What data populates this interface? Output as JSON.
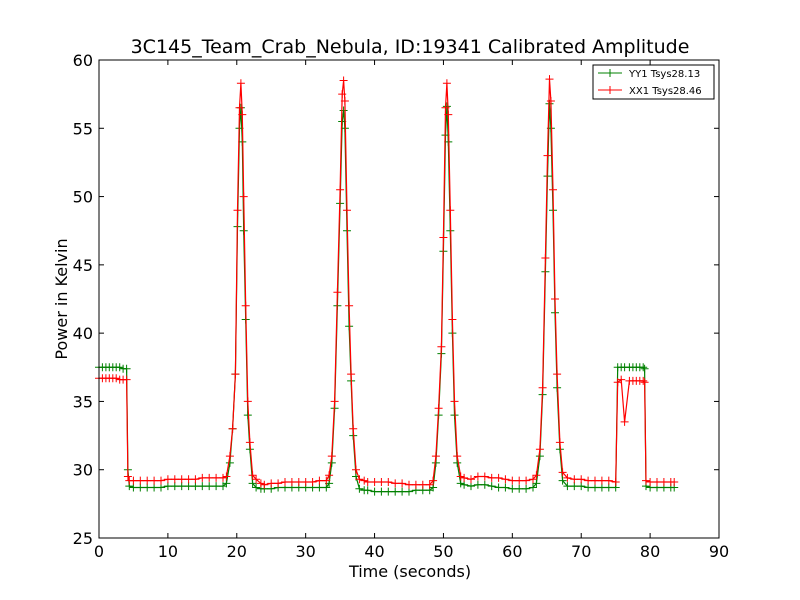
{
  "chart_data": {
    "type": "line",
    "title": "3C145_Team_Crab_Nebula, ID:19341 Calibrated Amplitude",
    "xlabel": "Time (seconds)",
    "ylabel": "Power in Kelvin",
    "xlim": [
      0,
      90
    ],
    "ylim": [
      25,
      60
    ],
    "xticks": [
      "0",
      "10",
      "20",
      "30",
      "40",
      "50",
      "60",
      "70",
      "80",
      "90"
    ],
    "yticks": [
      "25",
      "30",
      "35",
      "40",
      "45",
      "50",
      "55",
      "60"
    ],
    "grid": false,
    "legend_position": "top-right",
    "marker": "plus",
    "series": [
      {
        "name": "YY1 Tsys28.13",
        "color": "#008000",
        "points": [
          [
            0,
            37.5
          ],
          [
            0.5,
            37.5
          ],
          [
            1,
            37.5
          ],
          [
            1.5,
            37.5
          ],
          [
            2,
            37.5
          ],
          [
            2.5,
            37.5
          ],
          [
            3,
            37.5
          ],
          [
            3.5,
            37.4
          ],
          [
            4,
            37.4
          ],
          [
            4.2,
            30.0
          ],
          [
            4.4,
            28.8
          ],
          [
            5,
            28.7
          ],
          [
            6,
            28.7
          ],
          [
            7,
            28.7
          ],
          [
            8,
            28.7
          ],
          [
            9,
            28.7
          ],
          [
            10,
            28.8
          ],
          [
            11,
            28.8
          ],
          [
            12,
            28.8
          ],
          [
            13,
            28.8
          ],
          [
            14,
            28.8
          ],
          [
            15,
            28.8
          ],
          [
            16,
            28.8
          ],
          [
            17,
            28.8
          ],
          [
            18,
            28.8
          ],
          [
            18.5,
            29.0
          ],
          [
            19,
            30.5
          ],
          [
            19.4,
            33.0
          ],
          [
            19.8,
            37.0
          ],
          [
            20.1,
            47.8
          ],
          [
            20.4,
            55.0
          ],
          [
            20.6,
            56.5
          ],
          [
            20.8,
            54.0
          ],
          [
            21.0,
            47.5
          ],
          [
            21.3,
            41.0
          ],
          [
            21.6,
            34.0
          ],
          [
            21.9,
            31.5
          ],
          [
            22.3,
            29.0
          ],
          [
            22.8,
            28.7
          ],
          [
            23.5,
            28.6
          ],
          [
            24,
            28.6
          ],
          [
            25,
            28.6
          ],
          [
            26,
            28.7
          ],
          [
            27,
            28.7
          ],
          [
            28,
            28.7
          ],
          [
            29,
            28.7
          ],
          [
            30,
            28.7
          ],
          [
            31,
            28.7
          ],
          [
            32,
            28.7
          ],
          [
            33,
            28.7
          ],
          [
            33.4,
            29.0
          ],
          [
            33.8,
            30.5
          ],
          [
            34.2,
            34.5
          ],
          [
            34.6,
            42.0
          ],
          [
            35.0,
            49.5
          ],
          [
            35.3,
            55.5
          ],
          [
            35.5,
            56.3
          ],
          [
            35.7,
            55.0
          ],
          [
            36.0,
            47.5
          ],
          [
            36.3,
            40.5
          ],
          [
            36.6,
            36.5
          ],
          [
            36.9,
            32.5
          ],
          [
            37.3,
            29.5
          ],
          [
            37.8,
            28.6
          ],
          [
            38.5,
            28.5
          ],
          [
            39,
            28.5
          ],
          [
            40,
            28.4
          ],
          [
            41,
            28.4
          ],
          [
            42,
            28.4
          ],
          [
            43,
            28.4
          ],
          [
            44,
            28.4
          ],
          [
            45,
            28.4
          ],
          [
            46,
            28.5
          ],
          [
            47,
            28.5
          ],
          [
            48,
            28.5
          ],
          [
            48.5,
            28.7
          ],
          [
            48.9,
            30.5
          ],
          [
            49.3,
            34.0
          ],
          [
            49.7,
            38.5
          ],
          [
            50.0,
            46.0
          ],
          [
            50.3,
            54.5
          ],
          [
            50.5,
            56.6
          ],
          [
            50.7,
            54.0
          ],
          [
            51.0,
            47.5
          ],
          [
            51.3,
            40.0
          ],
          [
            51.6,
            34.0
          ],
          [
            52.0,
            30.5
          ],
          [
            52.5,
            29.0
          ],
          [
            53,
            28.9
          ],
          [
            54,
            28.8
          ],
          [
            55,
            28.9
          ],
          [
            56,
            28.9
          ],
          [
            57,
            28.8
          ],
          [
            58,
            28.7
          ],
          [
            59,
            28.7
          ],
          [
            60,
            28.6
          ],
          [
            61,
            28.6
          ],
          [
            62,
            28.6
          ],
          [
            63,
            28.7
          ],
          [
            63.5,
            29.0
          ],
          [
            64.0,
            31.0
          ],
          [
            64.4,
            35.5
          ],
          [
            64.8,
            44.5
          ],
          [
            65.1,
            51.5
          ],
          [
            65.4,
            56.8
          ],
          [
            65.6,
            55.0
          ],
          [
            65.9,
            49.0
          ],
          [
            66.2,
            41.5
          ],
          [
            66.5,
            36.0
          ],
          [
            66.9,
            31.5
          ],
          [
            67.3,
            29.2
          ],
          [
            68,
            28.8
          ],
          [
            69,
            28.8
          ],
          [
            70,
            28.8
          ],
          [
            71,
            28.7
          ],
          [
            72,
            28.7
          ],
          [
            73,
            28.7
          ],
          [
            74,
            28.7
          ],
          [
            75,
            28.7
          ],
          [
            75.3,
            37.5
          ],
          [
            75.8,
            37.5
          ],
          [
            76.3,
            37.5
          ],
          [
            77,
            37.5
          ],
          [
            77.5,
            37.5
          ],
          [
            78,
            37.5
          ],
          [
            78.5,
            37.5
          ],
          [
            79,
            37.5
          ],
          [
            79.2,
            37.4
          ],
          [
            79.4,
            28.8
          ],
          [
            80,
            28.7
          ],
          [
            81,
            28.7
          ],
          [
            82,
            28.7
          ],
          [
            83,
            28.7
          ],
          [
            83.5,
            28.7
          ]
        ]
      },
      {
        "name": "XX1 Tsys28.46",
        "color": "#ff0000",
        "points": [
          [
            0,
            36.7
          ],
          [
            0.5,
            36.7
          ],
          [
            1,
            36.7
          ],
          [
            1.5,
            36.7
          ],
          [
            2,
            36.7
          ],
          [
            2.5,
            36.7
          ],
          [
            3,
            36.6
          ],
          [
            3.5,
            36.6
          ],
          [
            4,
            36.6
          ],
          [
            4.2,
            29.5
          ],
          [
            4.4,
            29.2
          ],
          [
            5,
            29.2
          ],
          [
            6,
            29.2
          ],
          [
            7,
            29.2
          ],
          [
            8,
            29.2
          ],
          [
            9,
            29.2
          ],
          [
            10,
            29.3
          ],
          [
            11,
            29.3
          ],
          [
            12,
            29.3
          ],
          [
            13,
            29.3
          ],
          [
            14,
            29.3
          ],
          [
            15,
            29.4
          ],
          [
            16,
            29.4
          ],
          [
            17,
            29.4
          ],
          [
            18,
            29.4
          ],
          [
            18.5,
            29.5
          ],
          [
            19,
            31.0
          ],
          [
            19.4,
            33.0
          ],
          [
            19.8,
            37.0
          ],
          [
            20.1,
            49.0
          ],
          [
            20.4,
            56.5
          ],
          [
            20.6,
            58.3
          ],
          [
            20.8,
            56.0
          ],
          [
            21.0,
            50.0
          ],
          [
            21.3,
            42.0
          ],
          [
            21.6,
            35.0
          ],
          [
            21.9,
            32.0
          ],
          [
            22.3,
            29.6
          ],
          [
            22.8,
            29.3
          ],
          [
            23.5,
            29.0
          ],
          [
            24,
            28.9
          ],
          [
            25,
            29.0
          ],
          [
            26,
            29.0
          ],
          [
            27,
            29.1
          ],
          [
            28,
            29.1
          ],
          [
            29,
            29.1
          ],
          [
            30,
            29.1
          ],
          [
            31,
            29.1
          ],
          [
            32,
            29.2
          ],
          [
            33,
            29.2
          ],
          [
            33.4,
            29.6
          ],
          [
            33.8,
            31.0
          ],
          [
            34.2,
            35.0
          ],
          [
            34.6,
            43.0
          ],
          [
            35.0,
            50.5
          ],
          [
            35.3,
            57.5
          ],
          [
            35.5,
            58.5
          ],
          [
            35.7,
            57.0
          ],
          [
            36.0,
            49.0
          ],
          [
            36.3,
            42.0
          ],
          [
            36.6,
            37.0
          ],
          [
            36.9,
            33.0
          ],
          [
            37.3,
            30.0
          ],
          [
            37.8,
            29.3
          ],
          [
            38.5,
            29.2
          ],
          [
            39,
            29.1
          ],
          [
            40,
            29.1
          ],
          [
            41,
            29.1
          ],
          [
            42,
            29.1
          ],
          [
            43,
            29.0
          ],
          [
            44,
            29.0
          ],
          [
            45,
            28.9
          ],
          [
            46,
            28.9
          ],
          [
            47,
            28.9
          ],
          [
            48,
            28.9
          ],
          [
            48.5,
            29.2
          ],
          [
            48.9,
            31.0
          ],
          [
            49.3,
            34.5
          ],
          [
            49.7,
            39.0
          ],
          [
            50.0,
            47.0
          ],
          [
            50.3,
            56.5
          ],
          [
            50.5,
            58.3
          ],
          [
            50.7,
            56.0
          ],
          [
            51.0,
            49.0
          ],
          [
            51.3,
            41.0
          ],
          [
            51.6,
            35.0
          ],
          [
            52.0,
            31.0
          ],
          [
            52.5,
            29.5
          ],
          [
            53,
            29.4
          ],
          [
            54,
            29.3
          ],
          [
            55,
            29.5
          ],
          [
            56,
            29.5
          ],
          [
            57,
            29.4
          ],
          [
            58,
            29.4
          ],
          [
            59,
            29.3
          ],
          [
            60,
            29.2
          ],
          [
            61,
            29.2
          ],
          [
            62,
            29.2
          ],
          [
            63,
            29.3
          ],
          [
            63.5,
            29.6
          ],
          [
            64.0,
            31.5
          ],
          [
            64.4,
            36.0
          ],
          [
            64.8,
            45.5
          ],
          [
            65.1,
            53.0
          ],
          [
            65.4,
            58.6
          ],
          [
            65.6,
            57.0
          ],
          [
            65.9,
            50.5
          ],
          [
            66.2,
            42.5
          ],
          [
            66.5,
            37.0
          ],
          [
            66.9,
            32.0
          ],
          [
            67.3,
            29.8
          ],
          [
            68,
            29.4
          ],
          [
            69,
            29.3
          ],
          [
            70,
            29.3
          ],
          [
            71,
            29.2
          ],
          [
            72,
            29.2
          ],
          [
            73,
            29.2
          ],
          [
            74,
            29.2
          ],
          [
            75,
            29.1
          ],
          [
            75.3,
            36.4
          ],
          [
            75.8,
            36.6
          ],
          [
            76.3,
            33.5
          ],
          [
            77,
            36.5
          ],
          [
            77.5,
            36.5
          ],
          [
            78,
            36.5
          ],
          [
            78.5,
            36.5
          ],
          [
            79,
            36.5
          ],
          [
            79.2,
            36.4
          ],
          [
            79.4,
            29.2
          ],
          [
            80,
            29.1
          ],
          [
            81,
            29.1
          ],
          [
            82,
            29.1
          ],
          [
            83,
            29.1
          ],
          [
            83.5,
            29.1
          ]
        ]
      }
    ]
  }
}
